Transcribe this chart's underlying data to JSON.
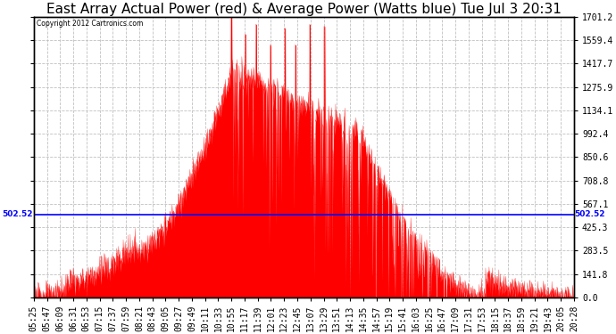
{
  "title": "East Array Actual Power (red) & Average Power (Watts blue) Tue Jul 3 20:31",
  "copyright": "Copyright 2012 Cartronics.com",
  "avg_power": 502.52,
  "ymax": 1701.2,
  "ymin": 0.0,
  "yticks": [
    0.0,
    141.8,
    283.5,
    425.3,
    567.1,
    708.8,
    850.6,
    992.4,
    1134.1,
    1275.9,
    1417.7,
    1559.4,
    1701.2
  ],
  "xtick_labels": [
    "05:25",
    "05:47",
    "06:09",
    "06:31",
    "06:53",
    "07:15",
    "07:37",
    "07:59",
    "08:21",
    "08:43",
    "09:05",
    "09:27",
    "09:49",
    "10:11",
    "10:33",
    "10:55",
    "11:17",
    "11:39",
    "12:01",
    "12:23",
    "12:45",
    "13:07",
    "13:29",
    "13:51",
    "14:13",
    "14:35",
    "14:57",
    "15:19",
    "15:41",
    "16:03",
    "16:25",
    "16:47",
    "17:09",
    "17:31",
    "17:53",
    "18:15",
    "18:37",
    "18:59",
    "19:21",
    "19:43",
    "20:05",
    "20:28"
  ],
  "fill_color": "#FF0000",
  "line_color": "#FF0000",
  "avg_color": "#0000FF",
  "bg_color": "#FFFFFF",
  "grid_color": "#C0C0C0",
  "title_fontsize": 11,
  "label_fontsize": 7
}
